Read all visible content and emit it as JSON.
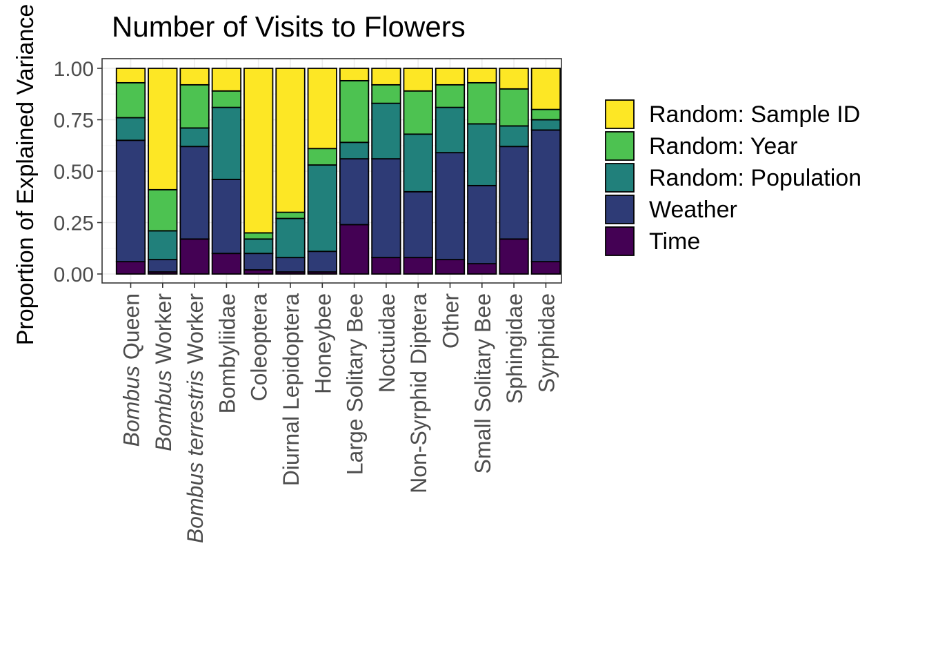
{
  "chart_data": {
    "type": "bar",
    "stacked": true,
    "title": "Number of Visits to Flowers",
    "xlabel": "",
    "ylabel": "Proportion of Explained Variance",
    "ylim": [
      0,
      1.0
    ],
    "yticks": [
      "0.00",
      "0.25",
      "0.50",
      "0.75",
      "1.00"
    ],
    "grid": true,
    "legend_position": "right",
    "categories": [
      {
        "italic": "Bombus",
        "rest": " Queen"
      },
      {
        "italic": "Bombus",
        "rest": " Worker"
      },
      {
        "italic": "Bombus terrestris",
        "rest": " Worker"
      },
      {
        "italic": "",
        "rest": "Bombyliidae"
      },
      {
        "italic": "",
        "rest": "Coleoptera"
      },
      {
        "italic": "",
        "rest": "Diurnal Lepidoptera"
      },
      {
        "italic": "",
        "rest": "Honeybee"
      },
      {
        "italic": "",
        "rest": "Large Solitary Bee"
      },
      {
        "italic": "",
        "rest": "Noctuidae"
      },
      {
        "italic": "",
        "rest": "Non-Syrphid Diptera"
      },
      {
        "italic": "",
        "rest": "Other"
      },
      {
        "italic": "",
        "rest": "Small Solitary Bee"
      },
      {
        "italic": "",
        "rest": "Sphingidae"
      },
      {
        "italic": "",
        "rest": "Syrphidae"
      }
    ],
    "series": [
      {
        "name": "Time",
        "color": "#440154",
        "values": [
          0.06,
          0.01,
          0.17,
          0.1,
          0.02,
          0.01,
          0.01,
          0.24,
          0.08,
          0.08,
          0.07,
          0.05,
          0.17,
          0.06
        ]
      },
      {
        "name": "Weather",
        "color": "#2E3B76",
        "values": [
          0.59,
          0.06,
          0.45,
          0.36,
          0.08,
          0.07,
          0.1,
          0.32,
          0.48,
          0.32,
          0.52,
          0.38,
          0.45,
          0.64
        ]
      },
      {
        "name": "Random: Population",
        "color": "#21807B",
        "values": [
          0.11,
          0.14,
          0.09,
          0.35,
          0.07,
          0.19,
          0.42,
          0.08,
          0.27,
          0.28,
          0.22,
          0.3,
          0.1,
          0.05
        ]
      },
      {
        "name": "Random: Year",
        "color": "#4DC251",
        "values": [
          0.17,
          0.2,
          0.21,
          0.08,
          0.03,
          0.03,
          0.08,
          0.3,
          0.09,
          0.21,
          0.11,
          0.2,
          0.18,
          0.05
        ]
      },
      {
        "name": "Random: Sample ID",
        "color": "#FDE725",
        "values": [
          0.07,
          0.59,
          0.08,
          0.11,
          0.8,
          0.7,
          0.39,
          0.06,
          0.08,
          0.11,
          0.08,
          0.07,
          0.1,
          0.2
        ]
      }
    ],
    "legend_order": [
      "Random: Sample ID",
      "Random: Year",
      "Random: Population",
      "Weather",
      "Time"
    ]
  }
}
